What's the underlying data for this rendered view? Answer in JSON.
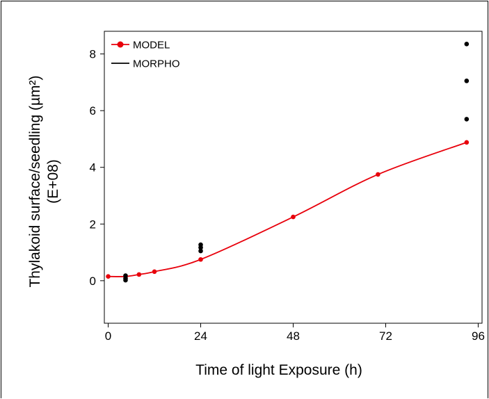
{
  "chart_data": {
    "type": "line",
    "title": "",
    "xlabel": "Time of light Exposure (h)",
    "ylabel_line1": "Thylakoid surface/seedling (µm²)",
    "ylabel_line2": "(E+08)",
    "xlim": [
      -1,
      97
    ],
    "ylim": [
      -1.5,
      8.8
    ],
    "xticks": [
      0,
      24,
      48,
      72,
      96
    ],
    "yticks": [
      0,
      2,
      4,
      6,
      8
    ],
    "x_tick_labels": [
      "0",
      "24",
      "48",
      "72",
      "96"
    ],
    "y_tick_labels": [
      "0",
      "2",
      "4",
      "6",
      "8"
    ],
    "legend_position": "top-left",
    "series": [
      {
        "name": "MODEL",
        "color": "#e8000b",
        "style": "line-with-points",
        "x": [
          0,
          4.5,
          8,
          12,
          24,
          48,
          70,
          93
        ],
        "y": [
          0.15,
          0.15,
          0.22,
          0.32,
          0.75,
          2.25,
          3.75,
          4.88
        ]
      },
      {
        "name": "MORPHO",
        "color": "#000000",
        "style": "points",
        "x": [
          4.5,
          4.5,
          4.5,
          24,
          24,
          24,
          93,
          93,
          93
        ],
        "y": [
          0.18,
          0.08,
          0.02,
          1.27,
          1.17,
          1.05,
          8.35,
          7.05,
          5.7
        ]
      }
    ]
  }
}
